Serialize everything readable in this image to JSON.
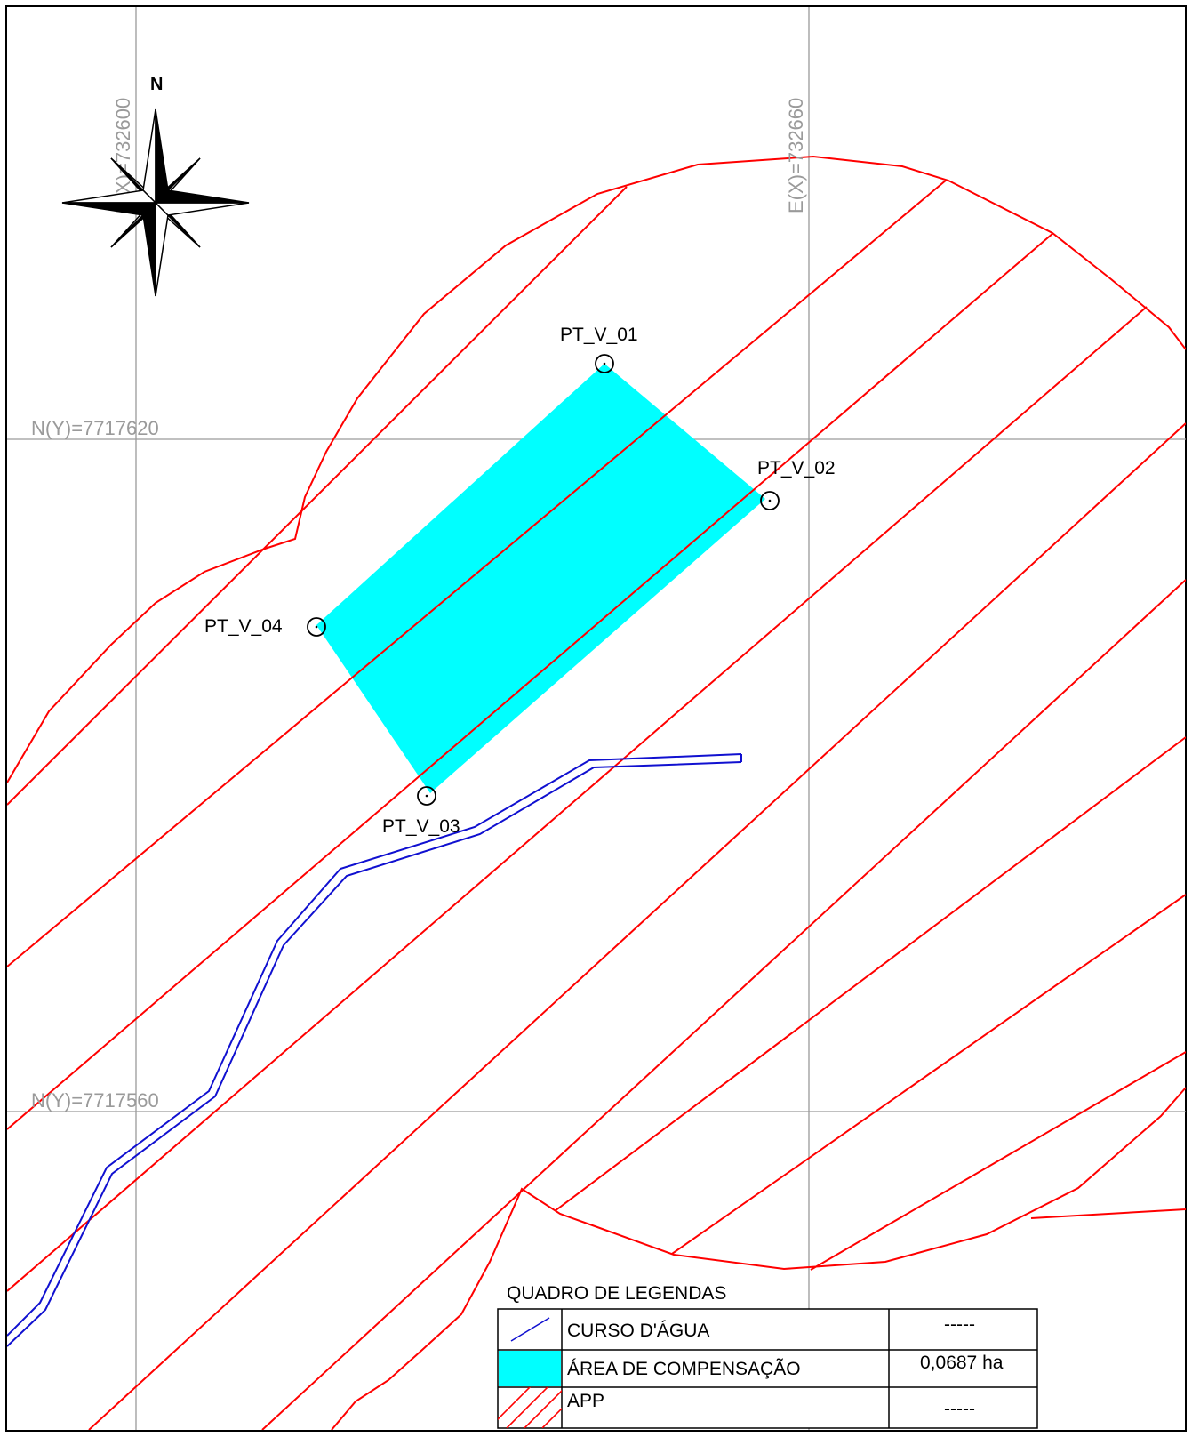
{
  "grid": {
    "e_labels": [
      "E(X)=732600",
      "E(X)=732660"
    ],
    "n_labels": [
      "N(Y)=7717620",
      "N(Y)=7717560"
    ]
  },
  "north_label": "N",
  "vertices": [
    {
      "id": "PT_V_01"
    },
    {
      "id": "PT_V_02"
    },
    {
      "id": "PT_V_03"
    },
    {
      "id": "PT_V_04"
    }
  ],
  "legend": {
    "title": "QUADRO DE LEGENDAS",
    "rows": [
      {
        "label": "CURSO D'ÁGUA",
        "value": "-----"
      },
      {
        "label": "ÁREA DE COMPENSAÇÃO",
        "value": "0,0687 ha"
      },
      {
        "label": "APP",
        "value": "-----"
      }
    ]
  },
  "colors": {
    "app": "#ff0000",
    "compensation_area": "#00ffff",
    "water_course": "#1010d0",
    "grid": "#9a9a9a"
  }
}
